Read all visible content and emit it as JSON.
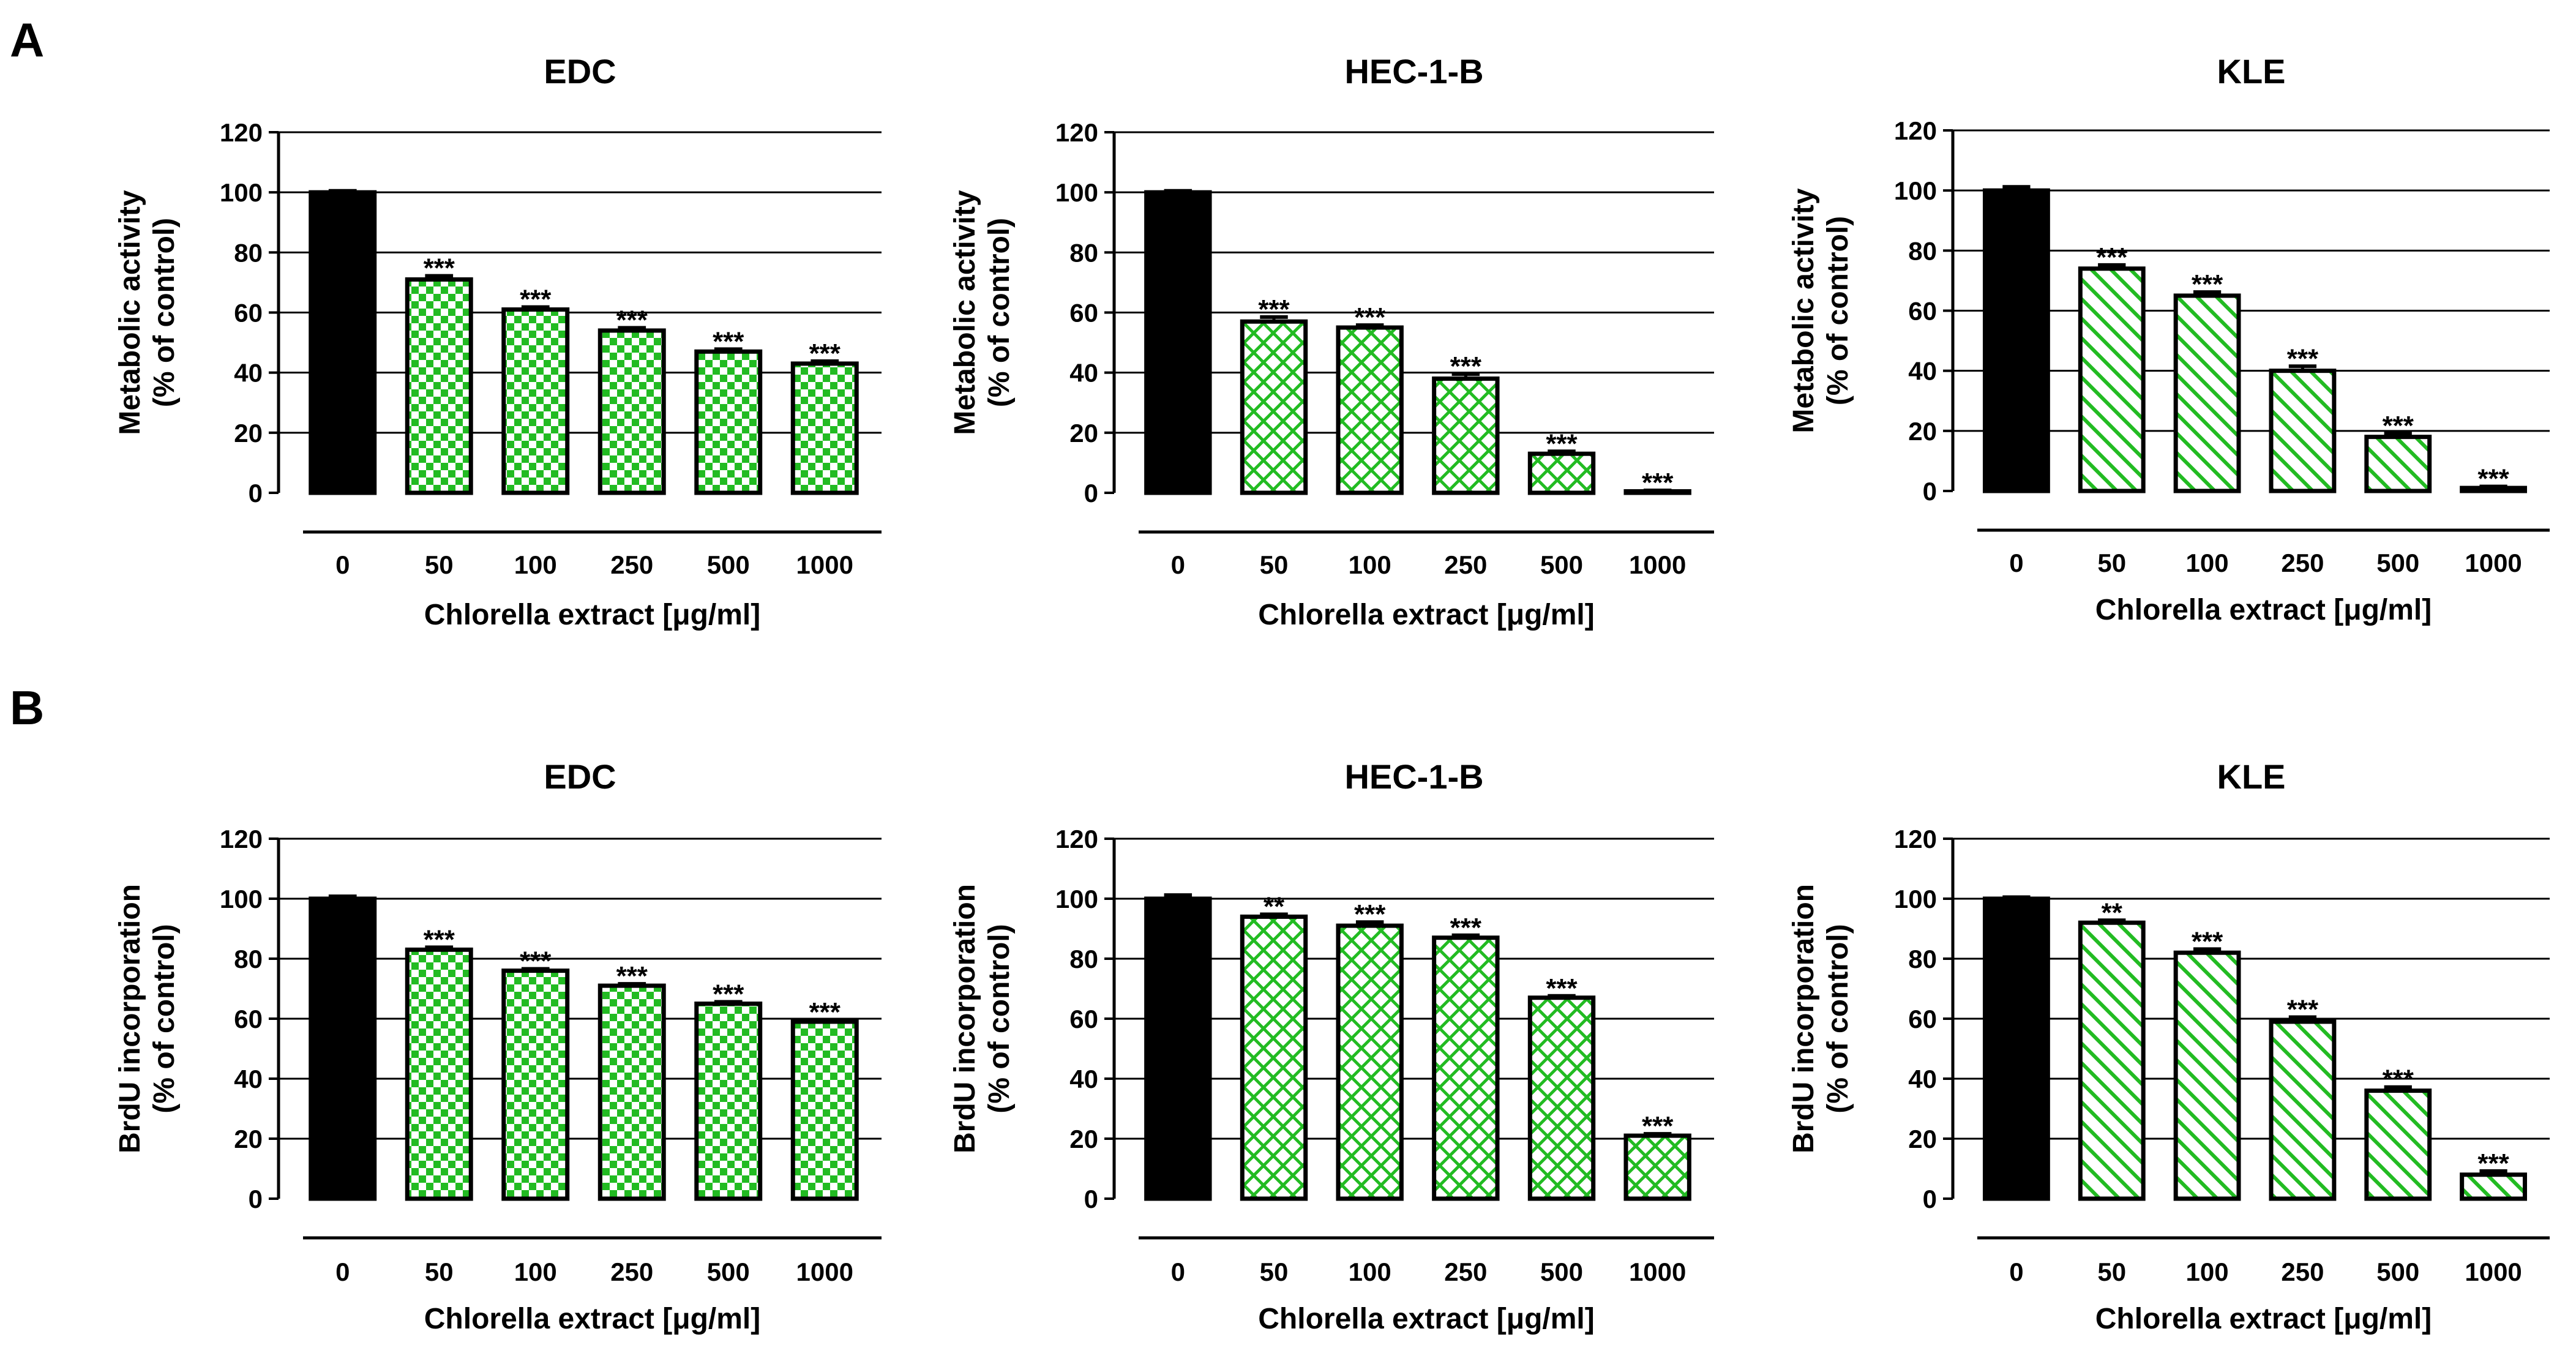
{
  "figure": {
    "panel_labels": [
      "A",
      "B"
    ],
    "accent_color": "#22bb22",
    "control_color": "#000000"
  },
  "chart_data": [
    {
      "type": "bar",
      "panel": "A",
      "title": "EDC",
      "categories": [
        "0",
        "50",
        "100",
        "250",
        "500",
        "1000"
      ],
      "values": [
        100,
        71,
        61,
        54,
        47,
        43
      ],
      "errors": [
        0.5,
        1.2,
        0.8,
        0.9,
        0.8,
        0.8
      ],
      "significance": [
        "",
        "***",
        "***",
        "***",
        "***",
        "***"
      ],
      "pattern": "checker",
      "ylabel": [
        "Metabolic activity",
        "(% of control)"
      ],
      "xlabel": "Chlorella extract [μg/ml]",
      "ylim": [
        0,
        120
      ],
      "yticks": [
        0,
        20,
        40,
        60,
        80,
        100,
        120
      ],
      "grid": true
    },
    {
      "type": "bar",
      "panel": "A",
      "title": "HEC-1-B",
      "categories": [
        "0",
        "50",
        "100",
        "250",
        "500",
        "1000"
      ],
      "values": [
        100,
        57,
        55,
        38,
        13,
        0.5
      ],
      "errors": [
        0.5,
        1.5,
        0.8,
        1.5,
        0.8,
        0.3
      ],
      "significance": [
        "",
        "***",
        "***",
        "***",
        "***",
        "***"
      ],
      "pattern": "crosshatch",
      "ylabel": [
        "Metabolic activity",
        "(% of control)"
      ],
      "xlabel": "Chlorella extract [μg/ml]",
      "ylim": [
        0,
        120
      ],
      "yticks": [
        0,
        20,
        40,
        60,
        80,
        100,
        120
      ],
      "grid": true
    },
    {
      "type": "bar",
      "panel": "A",
      "title": "KLE",
      "categories": [
        "0",
        "50",
        "100",
        "250",
        "500",
        "1000"
      ],
      "values": [
        100,
        74,
        65,
        40,
        18,
        1
      ],
      "errors": [
        1.2,
        1.2,
        1.2,
        1.5,
        1.2,
        0.5
      ],
      "significance": [
        "",
        "***",
        "***",
        "***",
        "***",
        "***"
      ],
      "pattern": "diagonal",
      "ylabel": [
        "Metabolic activity",
        "(% of control)"
      ],
      "xlabel": "Chlorella extract [μg/ml]",
      "ylim": [
        0,
        120
      ],
      "yticks": [
        0,
        20,
        40,
        60,
        80,
        100,
        120
      ],
      "grid": true
    },
    {
      "type": "bar",
      "panel": "B",
      "title": "EDC",
      "categories": [
        "0",
        "50",
        "100",
        "250",
        "500",
        "1000"
      ],
      "values": [
        100,
        83,
        76,
        71,
        65,
        59
      ],
      "errors": [
        0.8,
        0.8,
        0.6,
        0.6,
        0.6,
        0.6
      ],
      "significance": [
        "",
        "***",
        "***",
        "***",
        "***",
        "***"
      ],
      "pattern": "checker",
      "ylabel": [
        "BrdU incorporation",
        "(% of control)"
      ],
      "xlabel": "Chlorella extract [μg/ml]",
      "ylim": [
        0,
        120
      ],
      "yticks": [
        0,
        20,
        40,
        60,
        80,
        100,
        120
      ],
      "grid": true
    },
    {
      "type": "bar",
      "panel": "B",
      "title": "HEC-1-B",
      "categories": [
        "0",
        "50",
        "100",
        "250",
        "500",
        "1000"
      ],
      "values": [
        100,
        94,
        91,
        87,
        67,
        21
      ],
      "errors": [
        1.2,
        0.8,
        1.2,
        0.8,
        0.6,
        0.6
      ],
      "significance": [
        "",
        "**",
        "***",
        "***",
        "***",
        "***"
      ],
      "pattern": "crosshatch",
      "ylabel": [
        "BrdU incorporation",
        "(% of control)"
      ],
      "xlabel": "Chlorella extract [μg/ml]",
      "ylim": [
        0,
        120
      ],
      "yticks": [
        0,
        20,
        40,
        60,
        80,
        100,
        120
      ],
      "grid": true
    },
    {
      "type": "bar",
      "panel": "B",
      "title": "KLE",
      "categories": [
        "0",
        "50",
        "100",
        "250",
        "500",
        "1000"
      ],
      "values": [
        100,
        92,
        82,
        59,
        36,
        8
      ],
      "errors": [
        0.5,
        0.8,
        1.2,
        1.5,
        1.2,
        1.2
      ],
      "significance": [
        "",
        "**",
        "***",
        "***",
        "***",
        "***"
      ],
      "pattern": "diagonal",
      "ylabel": [
        "BrdU incorporation",
        "(% of control)"
      ],
      "xlabel": "Chlorella extract [μg/ml]",
      "ylim": [
        0,
        120
      ],
      "yticks": [
        0,
        20,
        40,
        60,
        80,
        100,
        120
      ],
      "grid": true
    }
  ]
}
